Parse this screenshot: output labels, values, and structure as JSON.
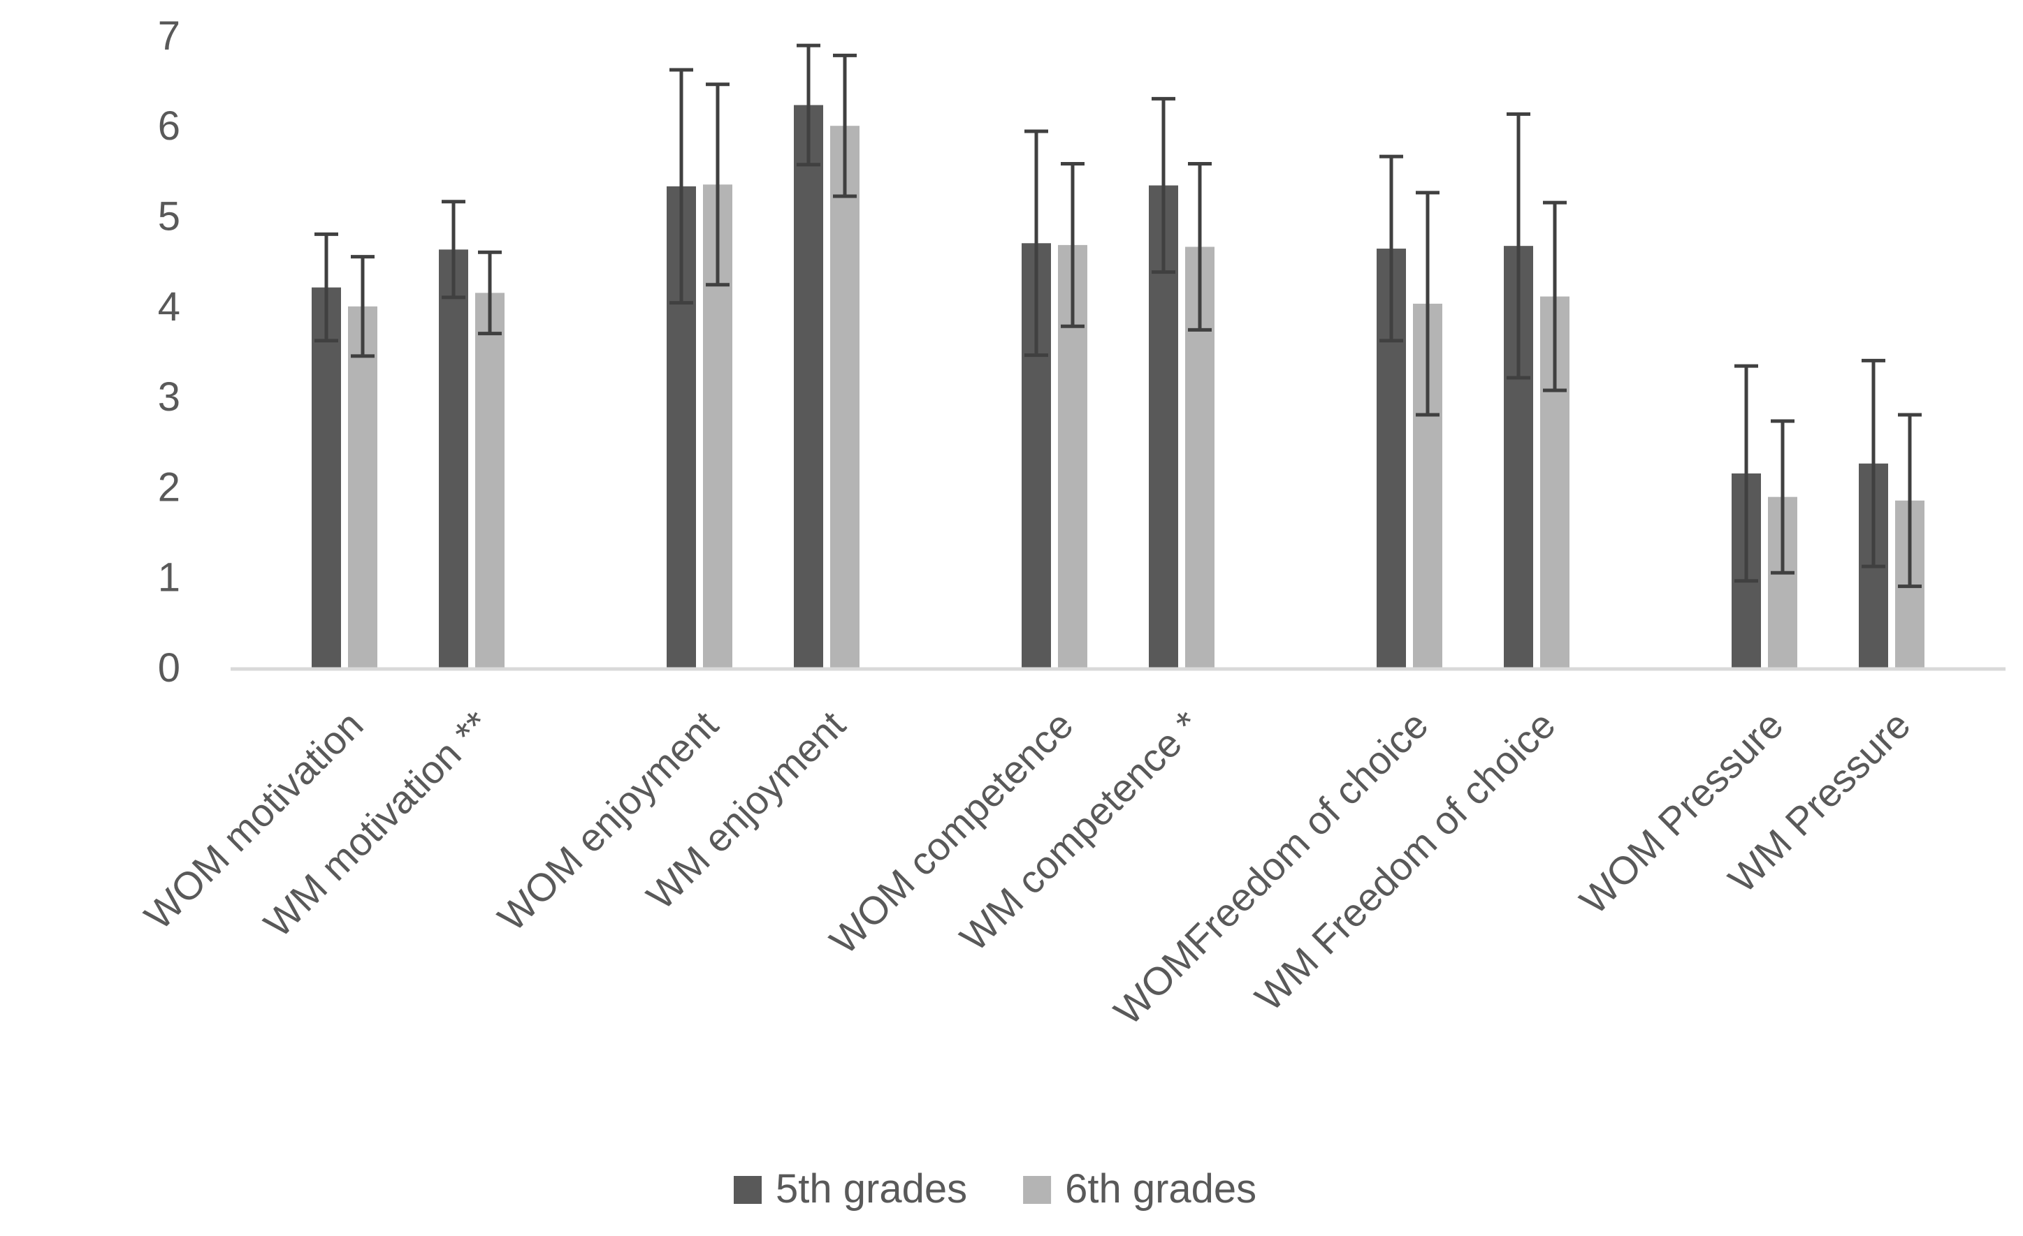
{
  "chart_data": {
    "type": "bar",
    "categories": [
      "WOM motivation",
      "WM motivation **",
      "WOM enjoyment",
      "WM enjoyment",
      "WOM competence",
      "WM competence *",
      "WOMFreedom of choice",
      "WM Freedom of choice",
      "WOM Pressure",
      "WM Pressure"
    ],
    "category_groups": [
      [
        0,
        1
      ],
      [
        2,
        3
      ],
      [
        4,
        5
      ],
      [
        6,
        7
      ],
      [
        8,
        9
      ]
    ],
    "series": [
      {
        "name": "5th grades",
        "color": "#595959",
        "values": [
          4.21,
          4.63,
          5.33,
          6.23,
          4.7,
          5.34,
          4.64,
          4.67,
          2.15,
          2.26
        ],
        "error_upper": [
          4.8,
          5.16,
          6.62,
          6.89,
          5.94,
          6.3,
          5.66,
          6.13,
          3.34,
          3.4
        ],
        "error_lower": [
          3.62,
          4.1,
          4.04,
          5.57,
          3.46,
          4.38,
          3.62,
          3.21,
          0.96,
          1.12
        ]
      },
      {
        "name": "6th grades",
        "color": "#b4b4b4",
        "values": [
          4.0,
          4.15,
          5.35,
          6.0,
          4.68,
          4.66,
          4.03,
          4.11,
          1.89,
          1.85
        ],
        "error_upper": [
          4.55,
          4.6,
          6.46,
          6.78,
          5.58,
          5.58,
          5.26,
          5.15,
          2.73,
          2.8
        ],
        "error_lower": [
          3.45,
          3.7,
          4.24,
          5.22,
          3.78,
          3.74,
          2.8,
          3.07,
          1.05,
          0.9
        ]
      }
    ],
    "ylim": [
      0,
      7
    ],
    "yticks": [
      "0",
      "1",
      "2",
      "3",
      "4",
      "5",
      "6",
      "7"
    ],
    "grid": false,
    "legend_position": "bottom",
    "axis_color": "#d9d9d9",
    "error_bar_color": "#404040"
  }
}
